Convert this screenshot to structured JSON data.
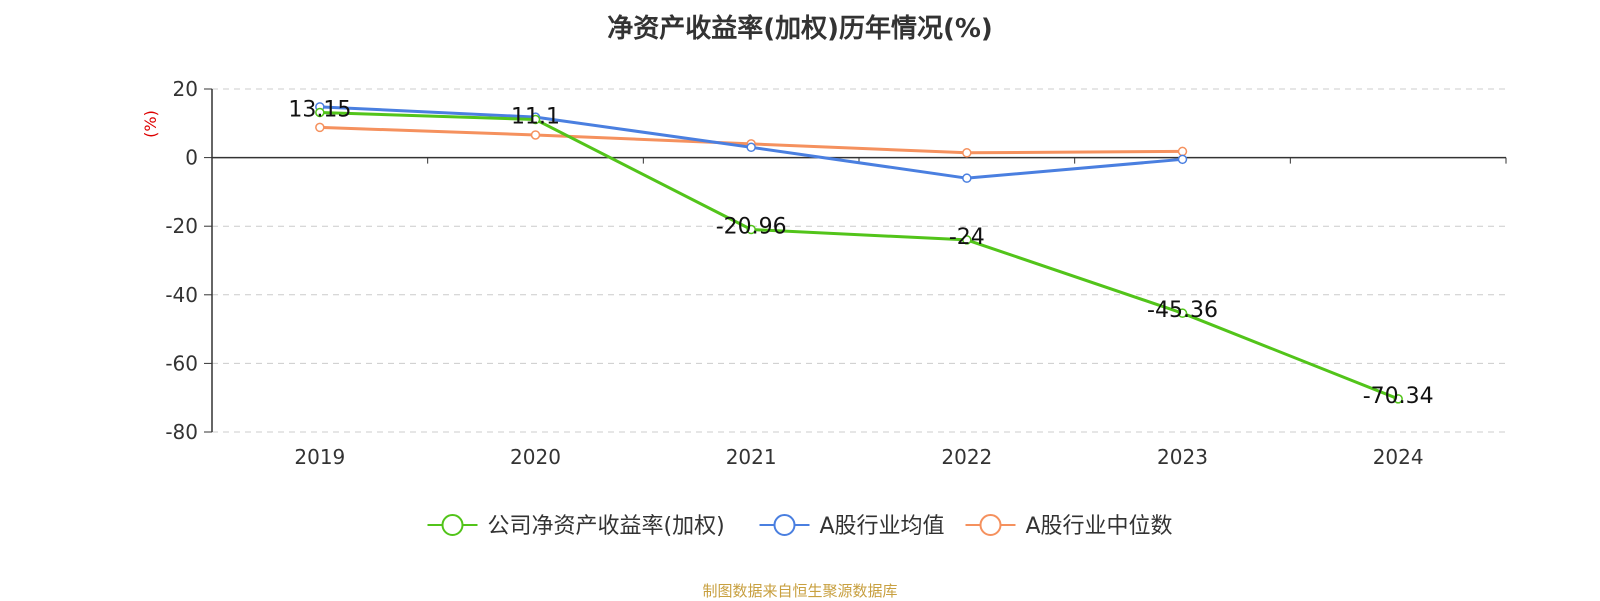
{
  "chart_data": {
    "type": "line",
    "title": "净资产收益率(加权)历年情况(%)",
    "ylabel": "(%)",
    "categories": [
      "2019",
      "2020",
      "2021",
      "2022",
      "2023",
      "2024"
    ],
    "ylim": [
      -80,
      20
    ],
    "yticks": [
      20,
      0,
      -20,
      -40,
      -60,
      -80
    ],
    "grid": "horizontal dashed",
    "legend_position": "bottom",
    "series": [
      {
        "name": "公司净资产收益率(加权)",
        "color": "#52c41a",
        "values": [
          13.15,
          11.1,
          -20.96,
          -24,
          -45.36,
          -70.34
        ],
        "labels": [
          "13.15",
          "11.1",
          "-20.96",
          "-24",
          "-45.36",
          "-70.34"
        ]
      },
      {
        "name": "A股行业均值",
        "color": "#4a7fe0",
        "values": [
          14.8,
          11.8,
          3.0,
          -6.0,
          -0.5,
          null
        ]
      },
      {
        "name": "A股行业中位数",
        "color": "#f5915e",
        "values": [
          8.8,
          6.6,
          4.0,
          1.4,
          1.8,
          null
        ]
      }
    ]
  },
  "source": "制图数据来自恒生聚源数据库"
}
